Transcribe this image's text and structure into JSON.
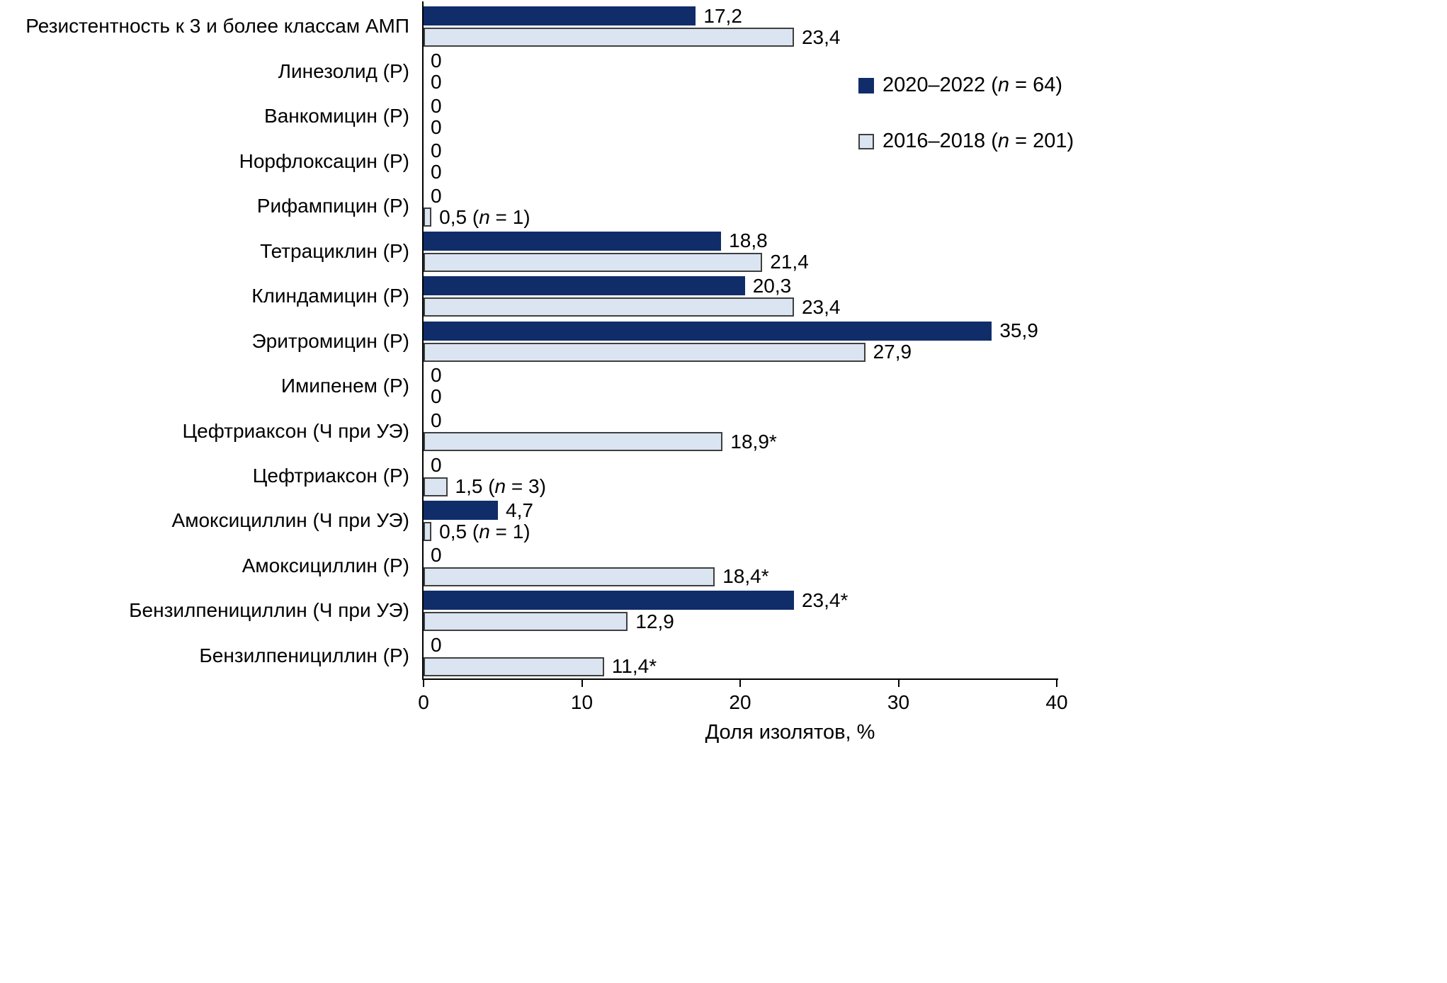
{
  "chart_data": {
    "type": "bar",
    "orientation": "horizontal",
    "title": "",
    "xlabel": "Доля изолятов, %",
    "ylabel": "",
    "xlim": [
      0,
      40
    ],
    "xticks": [
      0,
      10,
      20,
      30,
      40
    ],
    "grid": false,
    "legend_position": "upper right",
    "categories": [
      "Резистентность к 3 и более классам АМП",
      "Линезолид (Р)",
      "Ванкомицин (Р)",
      "Норфлоксацин (Р)",
      "Рифампицин (Р)",
      "Тетрациклин (Р)",
      "Клиндамицин (Р)",
      "Эритромицин (Р)",
      "Имипенем (Р)",
      "Цефтриаксон (Ч при УЭ)",
      "Цефтриаксон (Р)",
      "Амоксициллин (Ч при УЭ)",
      "Амоксициллин (Р)",
      "Бензилпенициллин (Ч при УЭ)",
      "Бензилпенициллин (Р)"
    ],
    "series": [
      {
        "name": "2020–2022 (n = 64)",
        "color": "#102d69",
        "border": "",
        "values": [
          17.2,
          0,
          0,
          0,
          0,
          18.8,
          20.3,
          35.9,
          0,
          0,
          0,
          4.7,
          0,
          23.4,
          0
        ],
        "labels": [
          "17,2",
          "0",
          "0",
          "0",
          "0",
          "18,8",
          "20,3",
          "35,9",
          "0",
          "0",
          "0",
          "4,7",
          "0",
          "23,4*",
          "0"
        ]
      },
      {
        "name": "2016–2018 (n = 201)",
        "color": "#dbe5f1",
        "border": "#3f3f3f",
        "values": [
          23.4,
          0,
          0,
          0,
          0.5,
          21.4,
          23.4,
          27.9,
          0,
          18.9,
          1.5,
          0.5,
          18.4,
          12.9,
          11.4
        ],
        "labels": [
          "23,4",
          "0",
          "0",
          "0",
          "0,5 (n = 1)",
          "21,4",
          "23,4",
          "27,9",
          "0",
          "18,9*",
          "1,5 (n = 3)",
          "0,5 (n = 1)",
          "18,4*",
          "12,9",
          "11,4*"
        ]
      }
    ]
  }
}
